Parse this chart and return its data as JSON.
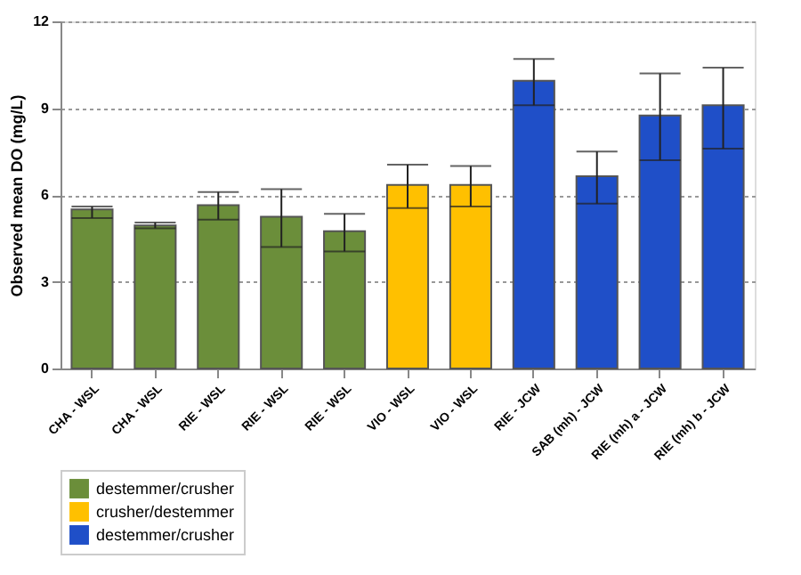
{
  "chart_data": {
    "type": "bar",
    "ylabel": "Observed mean DO (mg/L)",
    "categories": [
      "CHA - WSL",
      "CHA - WSL",
      "RIE - WSL",
      "RIE - WSL",
      "RIE - WSL",
      "VIO - WSL",
      "VIO - WSL",
      "RIE - JCW",
      "SAB (mh) - JCW",
      "RIE (mh) a - JCW",
      "RIE (mh) b - JCW"
    ],
    "series": [
      {
        "name": "destemmer/crusher",
        "color": "#6b8e3a",
        "values": [
          5.5,
          4.95,
          5.65,
          5.25,
          4.75,
          null,
          null,
          null,
          null,
          null,
          null
        ],
        "errors": [
          [
            5.2,
            5.6
          ],
          [
            4.85,
            5.05
          ],
          [
            5.15,
            6.1
          ],
          [
            4.2,
            6.2
          ],
          [
            4.05,
            5.35
          ],
          null,
          null,
          null,
          null,
          null,
          null
        ]
      },
      {
        "name": "crusher/destemmer",
        "color": "#ffc000",
        "values": [
          null,
          null,
          null,
          null,
          null,
          6.35,
          6.35,
          null,
          null,
          null,
          null
        ],
        "errors": [
          null,
          null,
          null,
          null,
          null,
          [
            5.55,
            7.05
          ],
          [
            5.6,
            7.0
          ],
          null,
          null,
          null,
          null
        ]
      },
      {
        "name": "destemmer/crusher",
        "color": "#1f4fc8",
        "values": [
          null,
          null,
          null,
          null,
          null,
          null,
          null,
          9.95,
          6.65,
          8.75,
          9.1
        ],
        "errors": [
          null,
          null,
          null,
          null,
          null,
          null,
          null,
          [
            9.1,
            10.7
          ],
          [
            5.7,
            7.5
          ],
          [
            7.2,
            10.2
          ],
          [
            7.6,
            10.4
          ]
        ]
      }
    ],
    "ylim": [
      0,
      12
    ],
    "yticks": [
      0,
      3,
      6,
      9,
      12
    ],
    "grid": "y",
    "legend": "bottom"
  }
}
